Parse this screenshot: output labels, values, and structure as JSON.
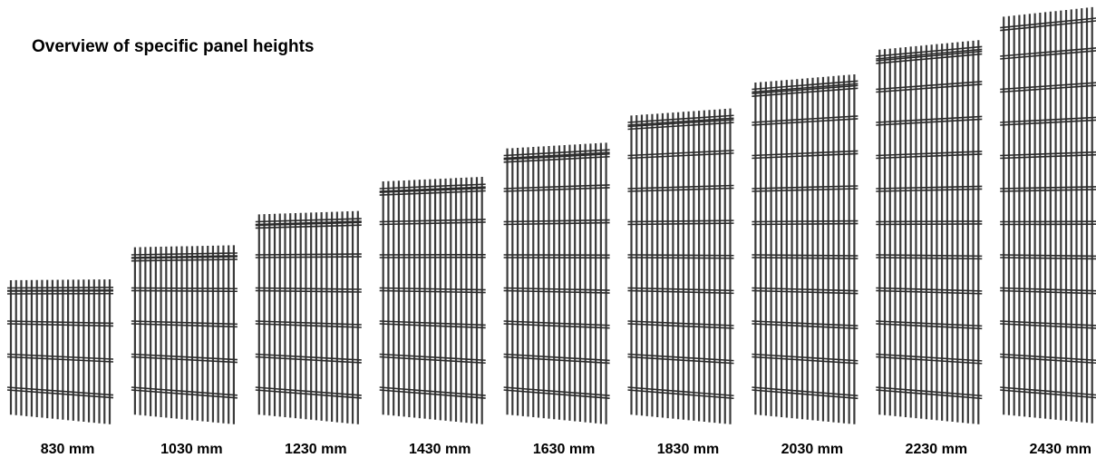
{
  "title": "Overview of specific panel heights",
  "panels": [
    {
      "label": "830 mm"
    },
    {
      "label": "1030 mm"
    },
    {
      "label": "1230 mm"
    },
    {
      "label": "1430 mm"
    },
    {
      "label": "1630 mm"
    },
    {
      "label": "1830 mm"
    },
    {
      "label": "2030 mm"
    },
    {
      "label": "2230 mm"
    },
    {
      "label": "2430 mm"
    }
  ]
}
